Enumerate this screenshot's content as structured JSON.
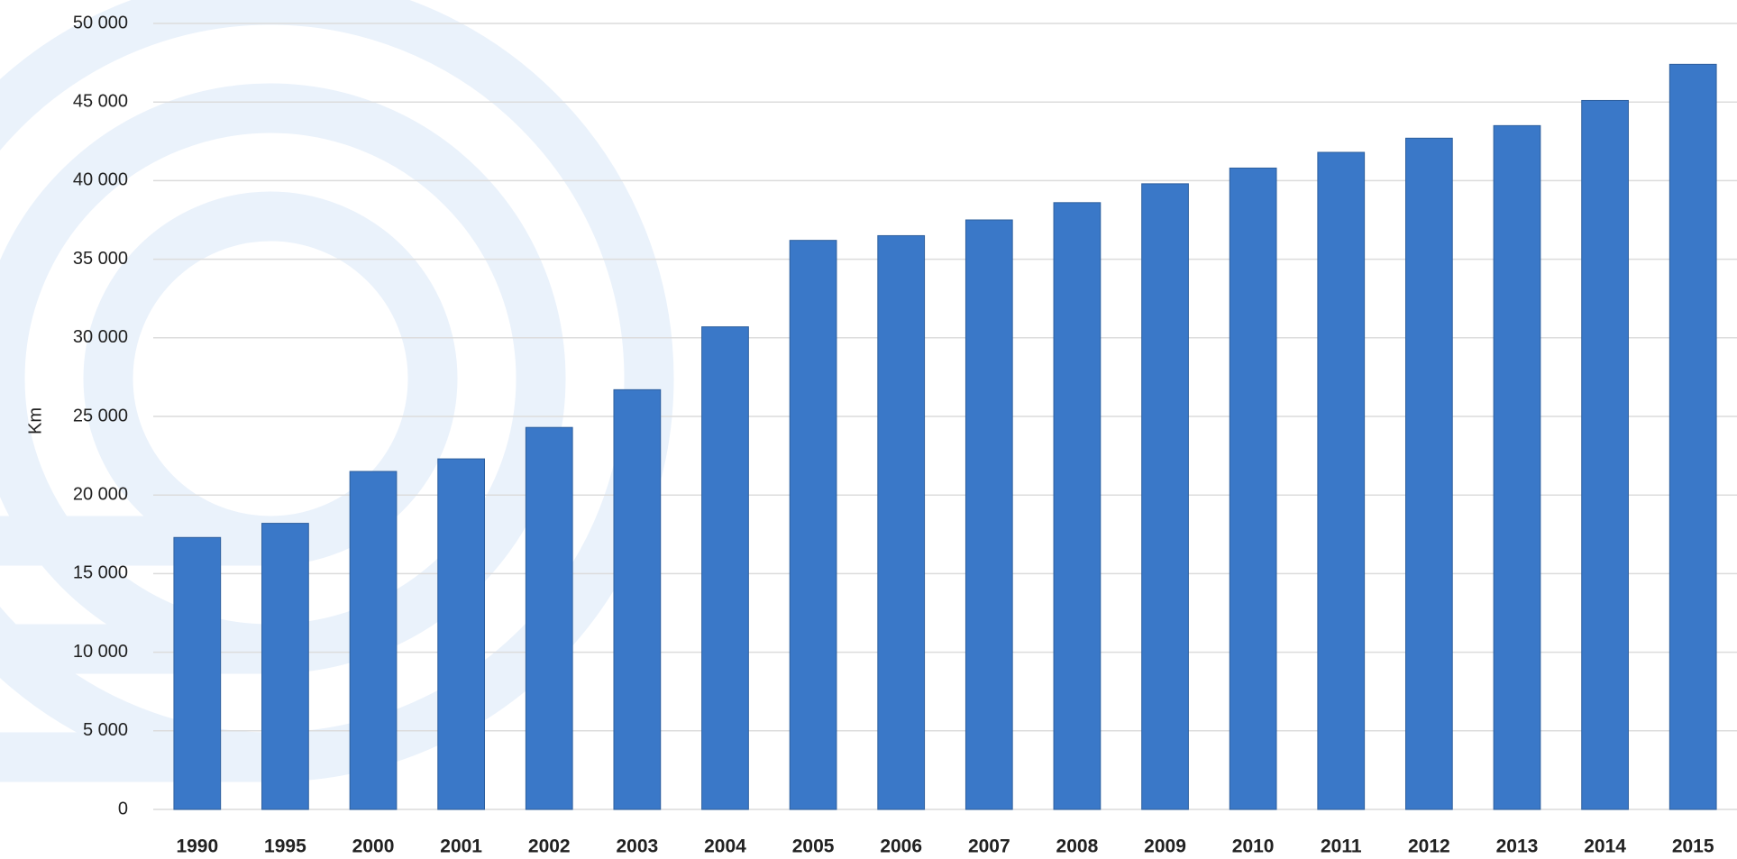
{
  "chart_data": {
    "type": "bar",
    "y_label": "Km",
    "categories": [
      "1990",
      "1995",
      "2000",
      "2001",
      "2002",
      "2003",
      "2004",
      "2005",
      "2006",
      "2007",
      "2008",
      "2009",
      "2010",
      "2011",
      "2012",
      "2013",
      "2014",
      "2015"
    ],
    "values": [
      17300,
      18200,
      21500,
      22300,
      24300,
      26700,
      30700,
      36200,
      36500,
      37500,
      38600,
      39800,
      40800,
      41800,
      42700,
      43500,
      45100,
      47400
    ],
    "color": "#3a78c8",
    "ylim": [
      0,
      50000
    ],
    "yticks": [
      0,
      {
        "value": 5000,
        "label": "5 000"
      },
      {
        "value": 10000,
        "label": "10 000"
      },
      {
        "value": 15000,
        "label": "15 000"
      },
      {
        "value": 20000,
        "label": "20 000"
      },
      {
        "value": 25000,
        "label": "25 000"
      },
      {
        "value": 30000,
        "label": "30 000"
      },
      {
        "value": 35000,
        "label": "35 000"
      },
      {
        "value": 40000,
        "label": "40 000"
      },
      {
        "value": 45000,
        "label": "45 000"
      },
      {
        "value": 50000,
        "label": "50 000"
      }
    ],
    "grid": true
  }
}
